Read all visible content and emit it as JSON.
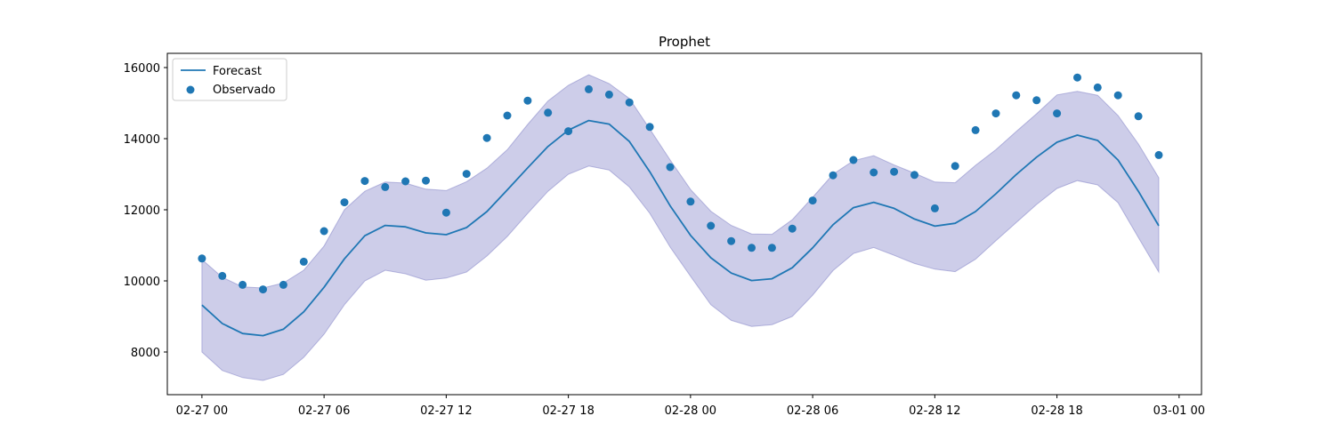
{
  "chart_data": {
    "type": "line",
    "title": "Prophet",
    "xlabel": "",
    "ylabel": "",
    "x_unit": "hour",
    "x_start": "2024-02-27T00:00",
    "x": [
      "02-27 00",
      "02-27 01",
      "02-27 02",
      "02-27 03",
      "02-27 04",
      "02-27 05",
      "02-27 06",
      "02-27 07",
      "02-27 08",
      "02-27 09",
      "02-27 10",
      "02-27 11",
      "02-27 12",
      "02-27 13",
      "02-27 14",
      "02-27 15",
      "02-27 16",
      "02-27 17",
      "02-27 18",
      "02-27 19",
      "02-27 20",
      "02-27 21",
      "02-27 22",
      "02-27 23",
      "02-28 00",
      "02-28 01",
      "02-28 02",
      "02-28 03",
      "02-28 04",
      "02-28 05",
      "02-28 06",
      "02-28 07",
      "02-28 08",
      "02-28 09",
      "02-28 10",
      "02-28 11",
      "02-28 12",
      "02-28 13",
      "02-28 14",
      "02-28 15",
      "02-28 16",
      "02-28 17",
      "02-28 18",
      "02-28 19",
      "02-28 20",
      "02-28 21",
      "02-28 22",
      "02-28 23"
    ],
    "xlim": [
      "02-26 22.3",
      "03-01 01.1"
    ],
    "xticks": [
      "02-27 00",
      "02-27 06",
      "02-27 12",
      "02-27 18",
      "02-28 00",
      "02-28 06",
      "02-28 12",
      "02-28 18",
      "03-01 00"
    ],
    "ylim": [
      6800,
      16400
    ],
    "yticks": [
      8000,
      10000,
      12000,
      14000,
      16000
    ],
    "legend_position": "upper left",
    "series": [
      {
        "name": "Forecast",
        "kind": "line",
        "color": "#1f77b4",
        "values": [
          9320,
          8800,
          8520,
          8460,
          8640,
          9130,
          9820,
          10620,
          11270,
          11560,
          11520,
          11350,
          11300,
          11500,
          11950,
          12560,
          13180,
          13780,
          14240,
          14510,
          14410,
          13920,
          13070,
          12110,
          11280,
          10650,
          10220,
          10010,
          10060,
          10370,
          10930,
          11580,
          12060,
          12210,
          12040,
          11740,
          11540,
          11620,
          11950,
          12450,
          12990,
          13480,
          13900,
          14100,
          13950,
          13400,
          12520,
          11550
        ]
      },
      {
        "name": "",
        "kind": "band",
        "color": "#7b7bc4",
        "lower": [
          8000,
          7480,
          7280,
          7200,
          7370,
          7850,
          8500,
          9330,
          10000,
          10300,
          10200,
          10020,
          10080,
          10250,
          10700,
          11250,
          11900,
          12520,
          13000,
          13230,
          13120,
          12640,
          11900,
          10950,
          10130,
          9330,
          8890,
          8720,
          8770,
          9000,
          9600,
          10290,
          10770,
          10940,
          10720,
          10490,
          10330,
          10260,
          10610,
          11130,
          11640,
          12150,
          12600,
          12820,
          12700,
          12200,
          11220,
          10250
        ],
        "upper": [
          10600,
          10100,
          9830,
          9800,
          9940,
          10300,
          10980,
          12000,
          12520,
          12780,
          12750,
          12580,
          12540,
          12790,
          13170,
          13690,
          14400,
          15060,
          15500,
          15800,
          15550,
          15130,
          14270,
          13400,
          12570,
          11960,
          11560,
          11320,
          11310,
          11720,
          12350,
          13000,
          13380,
          13520,
          13260,
          13030,
          12780,
          12760,
          13250,
          13690,
          14200,
          14700,
          15230,
          15330,
          15220,
          14650,
          13850,
          12900
        ]
      },
      {
        "name": "Observado",
        "kind": "scatter",
        "color": "#1f77b4",
        "values": [
          10630,
          10140,
          9890,
          9760,
          9890,
          10540,
          11400,
          12210,
          12810,
          12640,
          12800,
          12820,
          11920,
          13010,
          14020,
          14650,
          15070,
          14730,
          14210,
          15390,
          15240,
          15020,
          14330,
          13200,
          12230,
          11550,
          11120,
          10930,
          10930,
          11470,
          12260,
          12970,
          13400,
          13050,
          13070,
          12980,
          12040,
          13230,
          14240,
          14710,
          15220,
          15080,
          14710,
          15720,
          15440,
          15220,
          14630,
          13540
        ]
      }
    ]
  }
}
